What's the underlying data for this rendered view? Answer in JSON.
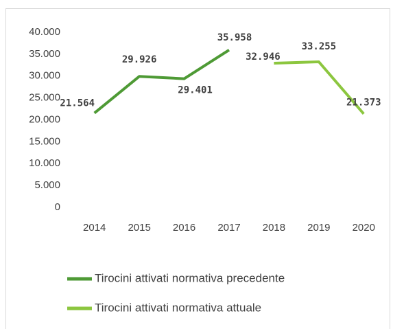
{
  "chart_data": {
    "type": "line",
    "categories": [
      "2014",
      "2015",
      "2016",
      "2017",
      "2018",
      "2019",
      "2020"
    ],
    "series": [
      {
        "name": "Tirocini attivati normativa precedente",
        "color": "#4e9a35",
        "values": [
          21564,
          29926,
          29401,
          35958,
          null,
          null,
          null
        ],
        "value_labels": [
          "21.564",
          "29.926",
          "29.401",
          "35.958",
          null,
          null,
          null
        ]
      },
      {
        "name": "Tirocini attivati normativa attuale",
        "color": "#8cc63f",
        "values": [
          null,
          null,
          null,
          null,
          32946,
          33255,
          21373
        ],
        "value_labels": [
          null,
          null,
          null,
          null,
          "32.946",
          "33.255",
          "21.373"
        ]
      }
    ],
    "ylim": [
      0,
      40000
    ],
    "yticks": [
      0,
      {
        "value": 5000,
        "label": "5.000"
      },
      {
        "value": 10000,
        "label": "10.000"
      },
      {
        "value": 15000,
        "label": "15.000"
      },
      {
        "value": 20000,
        "label": "20.000"
      },
      {
        "value": 25000,
        "label": "25.000"
      },
      {
        "value": 30000,
        "label": "30.000"
      },
      {
        "value": 35000,
        "label": "35.000"
      },
      {
        "value": 40000,
        "label": "40.000"
      }
    ],
    "legend": "bottom"
  }
}
